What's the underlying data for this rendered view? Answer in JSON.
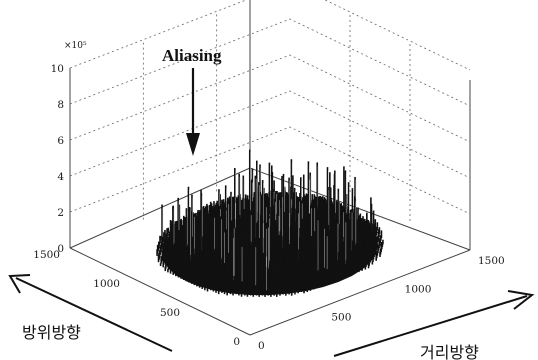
{
  "chart_data": {
    "type": "surface",
    "annotation": "Aliasing",
    "z_multiplier": "×10⁵",
    "xlabel": "거리방향",
    "ylabel": "방위방향",
    "zlabel": "",
    "xlim": [
      0,
      1500
    ],
    "ylim": [
      0,
      1500
    ],
    "zlim": [
      0,
      10
    ],
    "x_ticks": [
      "0",
      "500",
      "1000",
      "1500"
    ],
    "y_ticks": [
      "0",
      "500",
      "1000",
      "1500"
    ],
    "z_ticks": [
      "0",
      "2",
      "4",
      "6",
      "8",
      "10"
    ],
    "data_description": "dense noisy mound-shaped spectrum centred near (750, 750); typical height about 1 to 2, peak values up to about 5",
    "peak_value": 5,
    "typical_level": 1.5,
    "grid": true,
    "colors": {
      "surface": "#111111",
      "background": "#ffffff",
      "grid": "#666666"
    }
  }
}
